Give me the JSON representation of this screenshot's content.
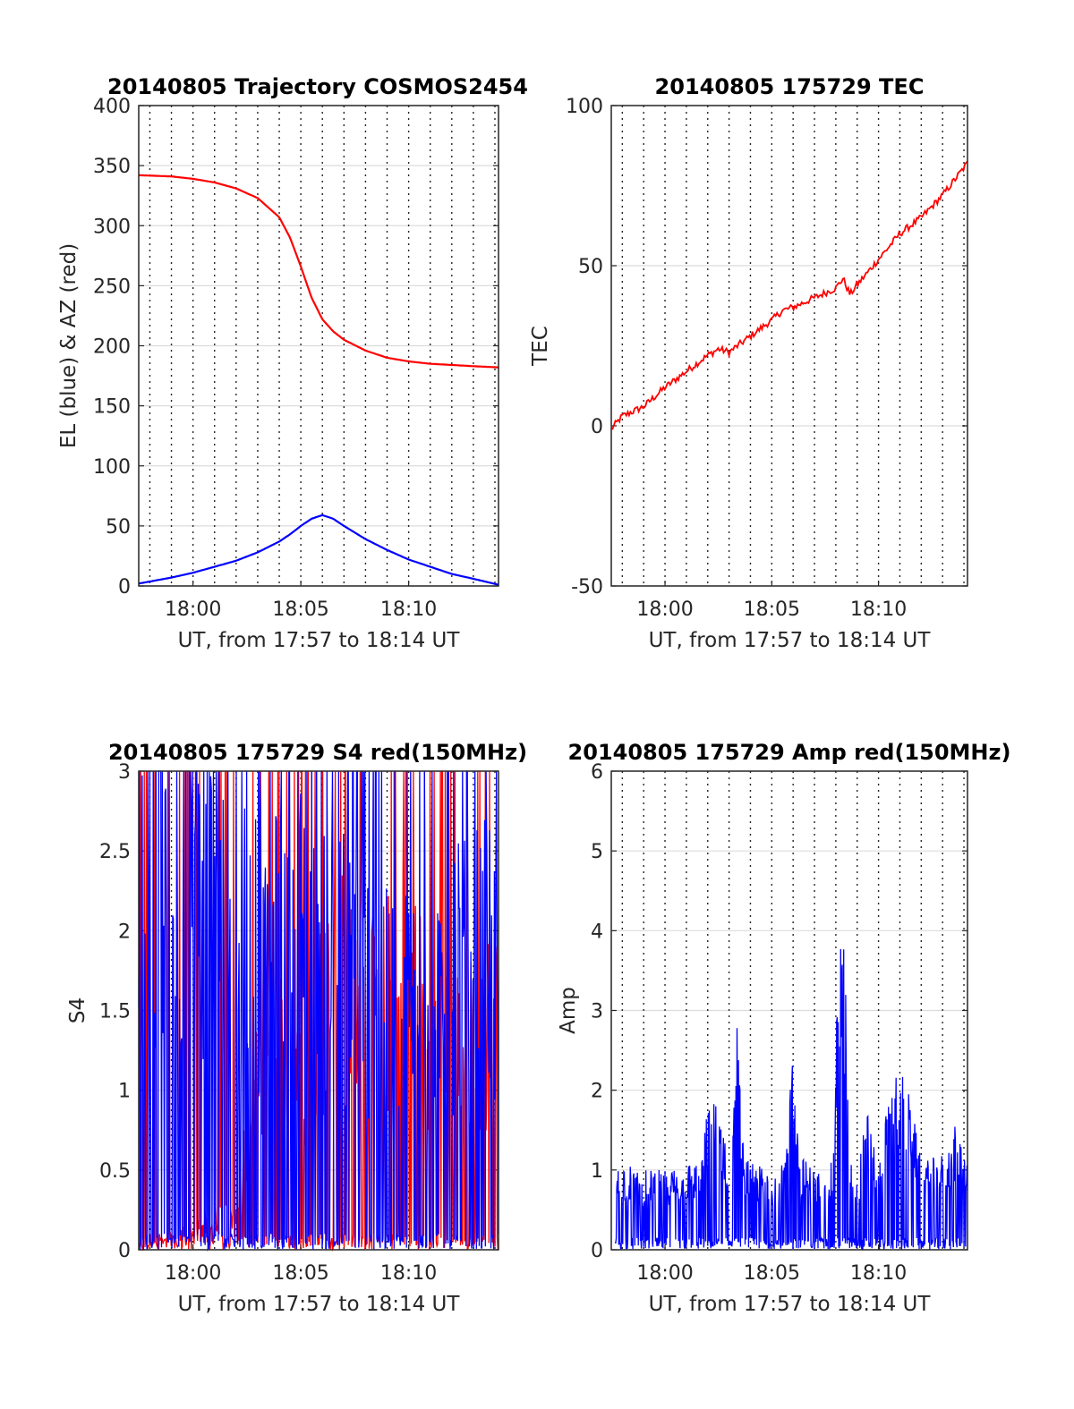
{
  "colors": {
    "red": "#ff0000",
    "blue": "#0000ff",
    "axis": "#262626",
    "grid": "#dcdcdc"
  },
  "chart_data": [
    {
      "id": "trajectory",
      "type": "line",
      "title": "20140805 Trajectory COSMOS2454",
      "xlabel": "UT, from 17:57 to 18:14 UT",
      "ylabel": "EL (blue) & AZ (red)",
      "xlim": [
        "17:57:29",
        "18:14:10"
      ],
      "ylim": [
        0,
        400
      ],
      "yticks": [
        0,
        50,
        100,
        150,
        200,
        250,
        300,
        350,
        400
      ],
      "xticks": [
        "18:00",
        "18:05",
        "18:10"
      ],
      "vgrid_minutes": [
        "17:58",
        "17:59",
        "18:00",
        "18:01",
        "18:02",
        "18:03",
        "18:04",
        "18:05",
        "18:06",
        "18:07",
        "18:08",
        "18:09",
        "18:10",
        "18:11",
        "18:12",
        "18:13",
        "18:14"
      ],
      "grid": true,
      "series": [
        {
          "color": "red",
          "x": [
            "17:57:29",
            "17:59:00",
            "18:00:00",
            "18:01:00",
            "18:02:00",
            "18:03:00",
            "18:04:00",
            "18:04:30",
            "18:05:00",
            "18:05:30",
            "18:06:00",
            "18:06:30",
            "18:07:00",
            "18:08:00",
            "18:09:00",
            "18:10:00",
            "18:11:00",
            "18:12:00",
            "18:13:00",
            "18:14:10"
          ],
          "y": [
            342,
            341,
            339,
            336,
            331,
            323,
            307,
            290,
            266,
            240,
            222,
            212,
            205,
            196,
            190,
            187,
            185,
            184,
            183,
            182
          ]
        },
        {
          "color": "blue",
          "x": [
            "17:57:29",
            "17:59:00",
            "18:00:00",
            "18:01:00",
            "18:02:00",
            "18:03:00",
            "18:04:00",
            "18:04:30",
            "18:05:00",
            "18:05:30",
            "18:06:00",
            "18:06:30",
            "18:07:00",
            "18:08:00",
            "18:09:00",
            "18:10:00",
            "18:11:00",
            "18:12:00",
            "18:13:00",
            "18:14:10"
          ],
          "y": [
            2,
            7,
            11,
            16,
            21,
            28,
            37,
            43,
            50,
            56,
            59,
            56,
            50,
            39,
            30,
            22,
            16,
            10,
            6,
            1
          ]
        }
      ]
    },
    {
      "id": "tec",
      "type": "line",
      "title": "20140805 175729 TEC",
      "xlabel": "UT, from 17:57 to 18:14 UT",
      "ylabel": "TEC",
      "xlim": [
        "17:57:29",
        "18:14:10"
      ],
      "ylim": [
        -50,
        100
      ],
      "yticks": [
        -50,
        0,
        50,
        100
      ],
      "xticks": [
        "18:00",
        "18:05",
        "18:10"
      ],
      "grid": true,
      "series": [
        {
          "color": "red",
          "x": [
            "17:57:29",
            "17:58:00",
            "17:59:00",
            "18:00:00",
            "18:01:00",
            "18:02:00",
            "18:02:30",
            "18:03:00",
            "18:04:00",
            "18:05:00",
            "18:05:30",
            "18:06:00",
            "18:07:00",
            "18:08:00",
            "18:08:20",
            "18:08:40",
            "18:09:00",
            "18:10:00",
            "18:11:00",
            "18:12:00",
            "18:13:00",
            "18:14:10"
          ],
          "y": [
            -1,
            3,
            6,
            12,
            17,
            22,
            24,
            23,
            28,
            33,
            36,
            37,
            40,
            43,
            46,
            41,
            44,
            52,
            60,
            65,
            72,
            82
          ]
        }
      ]
    },
    {
      "id": "s4",
      "type": "line",
      "title": "20140805 175729 S4 red(150MHz)",
      "xlabel": "UT, from 17:57 to 18:14 UT",
      "ylabel": "S4",
      "xlim": [
        "17:57:29",
        "18:14:10"
      ],
      "ylim": [
        0,
        3
      ],
      "yticks": [
        0,
        0.5,
        1,
        1.5,
        2,
        2.5,
        3
      ],
      "xticks": [
        "18:00",
        "18:05",
        "18:10"
      ],
      "grid": true,
      "series": [
        {
          "color": "red",
          "noisy": true,
          "x": [
            "17:57:29",
            "18:02:00",
            "18:03:00",
            "18:04:00",
            "18:05:00",
            "18:06:00",
            "18:07:00",
            "18:08:00",
            "18:09:00",
            "18:10:00",
            "18:11:00",
            "18:12:00",
            "18:13:00",
            "18:14:10"
          ],
          "y": [
            0.0,
            0.3,
            1.8,
            1.6,
            1.2,
            2.0,
            2.2,
            1.5,
            1.9,
            2.3,
            1.7,
            1.5,
            1.6,
            1.7
          ]
        },
        {
          "color": "blue",
          "noisy": true,
          "x": [
            "17:57:29",
            "17:59:00",
            "18:00:00",
            "18:01:00",
            "18:02:00",
            "18:03:00",
            "18:04:00",
            "18:05:00",
            "18:06:00",
            "18:07:00",
            "18:08:00",
            "18:09:00",
            "18:10:00",
            "18:11:00",
            "18:12:00",
            "18:13:00",
            "18:14:10"
          ],
          "y": [
            2.9,
            2.9,
            2.9,
            2.8,
            2.6,
            2.4,
            2.3,
            2.5,
            2.4,
            2.2,
            2.0,
            1.9,
            1.9,
            2.0,
            2.1,
            2.2,
            2.3
          ]
        }
      ]
    },
    {
      "id": "amp",
      "type": "line",
      "title": "20140805 175729 Amp red(150MHz)",
      "xlabel": "UT, from 17:57 to 18:14 UT",
      "ylabel": "Amp",
      "xlim": [
        "17:57:29",
        "18:14:10"
      ],
      "ylim": [
        0,
        6
      ],
      "yticks": [
        0,
        1,
        2,
        3,
        4,
        5,
        6
      ],
      "xticks": [
        "18:00",
        "18:05",
        "18:10"
      ],
      "grid": true,
      "series": [
        {
          "color": "blue",
          "noisy": true,
          "x": [
            "17:57:40",
            "17:58:00",
            "17:59:00",
            "18:00:00",
            "18:01:00",
            "18:01:40",
            "18:02:00",
            "18:02:30",
            "18:03:00",
            "18:03:20",
            "18:03:40",
            "18:04:00",
            "18:05:00",
            "18:05:40",
            "18:06:00",
            "18:06:20",
            "18:07:00",
            "18:07:50",
            "18:08:10",
            "18:08:25",
            "18:08:40",
            "18:09:00",
            "18:09:30",
            "18:10:00",
            "18:10:40",
            "18:11:00",
            "18:11:30",
            "18:12:00",
            "18:13:00",
            "18:13:40",
            "18:14:10"
          ],
          "y": [
            1.0,
            1.1,
            1.0,
            1.0,
            1.1,
            1.1,
            1.8,
            1.9,
            1.2,
            3.1,
            1.3,
            1.1,
            1.0,
            1.1,
            3.0,
            1.2,
            1.0,
            1.1,
            4.2,
            3.9,
            1.2,
            1.0,
            1.8,
            1.0,
            2.3,
            2.3,
            1.9,
            1.1,
            1.2,
            1.6,
            1.1
          ]
        }
      ]
    }
  ]
}
